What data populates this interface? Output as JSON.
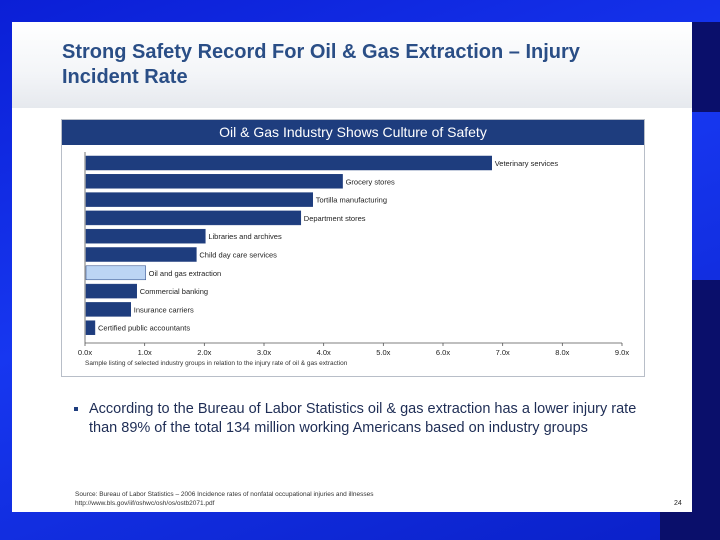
{
  "slide": {
    "title": "Strong Safety Record For Oil & Gas Extraction – Injury Incident Rate",
    "bullet": "According to the Bureau of Labor Statistics oil & gas extraction has a lower injury rate than 89% of the total 134 million working Americans based on industry groups",
    "source_line1": "Source: Bureau of Labor Statistics – 2006 Incidence rates of nonfatal occupational injuries and illnesses",
    "source_line2": "http://www.bls.gov/iif/oshwc/osh/os/ostb2071.pdf",
    "page_number": "24"
  },
  "colors": {
    "bar": "#1e3d7e",
    "highlight_bar": "#bcd5f4",
    "header": "#1e3d7e",
    "title_text": "#2a4e86"
  },
  "chart_data": {
    "type": "bar",
    "orientation": "horizontal",
    "title": "Oil & Gas Industry Shows Culture of Safety",
    "categories": [
      "Veterinary services",
      "Grocery stores",
      "Tortilla manufacturing",
      "Department stores",
      "Libraries and archives",
      "Child day care services",
      "Oil and gas extraction",
      "Commercial banking",
      "Insurance carriers",
      "Certified public accountants"
    ],
    "values": [
      6.8,
      4.3,
      3.8,
      3.6,
      2.0,
      1.85,
      1.0,
      0.85,
      0.75,
      0.15
    ],
    "highlight": "Oil and gas extraction",
    "xlim": [
      0,
      9
    ],
    "ticks": [
      "0.0x",
      "1.0x",
      "2.0x",
      "3.0x",
      "4.0x",
      "5.0x",
      "6.0x",
      "7.0x",
      "8.0x",
      "9.0x"
    ],
    "note": "Sample listing of selected industry groups in relation to the injury rate of oil & gas extraction"
  }
}
